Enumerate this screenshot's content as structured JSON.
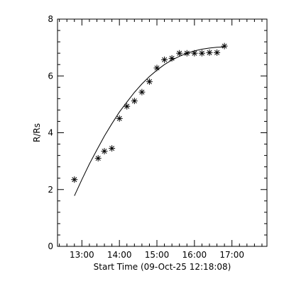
{
  "chart_data": {
    "type": "scatter",
    "xlabel": "Start Time (09-Oct-25 12:18:08)",
    "ylabel": "R/Rs",
    "x_ticks": [
      "13:00",
      "14:00",
      "15:00",
      "16:00",
      "17:00"
    ],
    "x_tick_hours": [
      13,
      14,
      15,
      16,
      17
    ],
    "y_ticks": [
      0,
      2,
      4,
      6,
      8
    ],
    "xlim": [
      "12:21",
      "17:56"
    ],
    "ylim": [
      0,
      8
    ],
    "grid": false,
    "series": [
      {
        "type": "scatter",
        "marker": "asterisk",
        "points": [
          {
            "x": "12:48",
            "y": 2.35
          },
          {
            "x": "13:26",
            "y": 3.1
          },
          {
            "x": "13:36",
            "y": 3.35
          },
          {
            "x": "13:48",
            "y": 3.45
          },
          {
            "x": "14:00",
            "y": 4.5
          },
          {
            "x": "14:12",
            "y": 4.93
          },
          {
            "x": "14:24",
            "y": 5.12
          },
          {
            "x": "14:36",
            "y": 5.43
          },
          {
            "x": "14:48",
            "y": 5.8
          },
          {
            "x": "15:00",
            "y": 6.28
          },
          {
            "x": "15:12",
            "y": 6.57
          },
          {
            "x": "15:24",
            "y": 6.62
          },
          {
            "x": "15:36",
            "y": 6.8
          },
          {
            "x": "15:48",
            "y": 6.8
          },
          {
            "x": "16:00",
            "y": 6.8
          },
          {
            "x": "16:12",
            "y": 6.8
          },
          {
            "x": "16:24",
            "y": 6.82
          },
          {
            "x": "16:36",
            "y": 6.82
          },
          {
            "x": "16:48",
            "y": 7.05
          }
        ]
      },
      {
        "type": "line",
        "points": [
          {
            "x": "12:48",
            "y": 1.78
          },
          {
            "x": "13:00",
            "y": 2.35
          },
          {
            "x": "13:12",
            "y": 2.9
          },
          {
            "x": "13:24",
            "y": 3.4
          },
          {
            "x": "13:36",
            "y": 3.88
          },
          {
            "x": "13:48",
            "y": 4.32
          },
          {
            "x": "14:00",
            "y": 4.73
          },
          {
            "x": "14:12",
            "y": 5.08
          },
          {
            "x": "14:24",
            "y": 5.42
          },
          {
            "x": "14:36",
            "y": 5.72
          },
          {
            "x": "14:48",
            "y": 5.98
          },
          {
            "x": "15:00",
            "y": 6.2
          },
          {
            "x": "15:12",
            "y": 6.4
          },
          {
            "x": "15:24",
            "y": 6.56
          },
          {
            "x": "15:36",
            "y": 6.69
          },
          {
            "x": "15:48",
            "y": 6.8
          },
          {
            "x": "16:00",
            "y": 6.88
          },
          {
            "x": "16:12",
            "y": 6.94
          },
          {
            "x": "16:24",
            "y": 6.98
          },
          {
            "x": "16:36",
            "y": 7.01
          },
          {
            "x": "16:48",
            "y": 7.02
          }
        ]
      }
    ]
  }
}
